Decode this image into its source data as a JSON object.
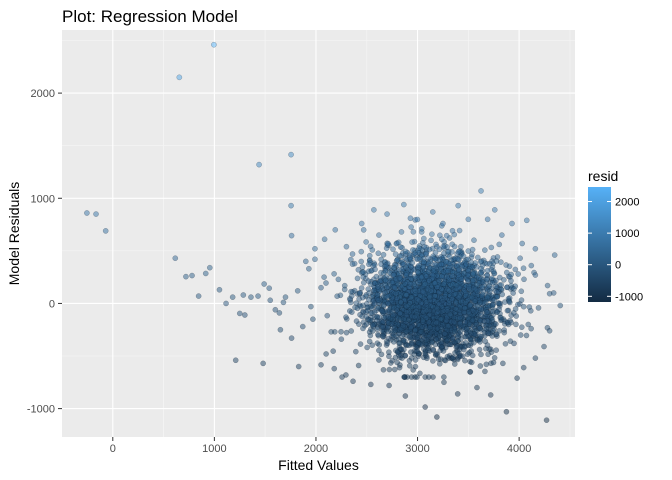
{
  "chart_data": {
    "type": "scatter",
    "title": "Plot: Regression Model",
    "xlabel": "Fitted Values",
    "ylabel": "Model Residuals",
    "xlim": [
      -500,
      4550
    ],
    "ylim": [
      -1270,
      2600
    ],
    "x_ticks": [
      0,
      1000,
      2000,
      3000,
      4000
    ],
    "x_tick_labels": [
      "0",
      "1000",
      "2000",
      "3000",
      "4000"
    ],
    "y_ticks": [
      -1000,
      0,
      1000,
      2000
    ],
    "y_tick_labels": [
      "-1000",
      "0",
      "1000",
      "2000"
    ],
    "grid": true,
    "legend": {
      "title": "resid",
      "placement": "right",
      "type": "continuous-colorbar",
      "range": [
        -1180,
        2460
      ],
      "ticks": [
        -1000,
        0,
        1000,
        2000
      ],
      "tick_labels": [
        "-1000",
        "0",
        "1000",
        "2000"
      ],
      "low_color": "#132B43",
      "high_color": "#56B1F7"
    },
    "point_alpha": 0.5,
    "points": [
      [
        995,
        2460
      ],
      [
        655,
        2150
      ],
      [
        1440,
        1320
      ],
      [
        1755,
        1415
      ],
      [
        1755,
        930
      ],
      [
        1760,
        645
      ],
      [
        -255,
        860
      ],
      [
        -165,
        850
      ],
      [
        -70,
        690
      ],
      [
        615,
        430
      ],
      [
        955,
        340
      ],
      [
        780,
        265
      ],
      [
        720,
        255
      ],
      [
        915,
        285
      ],
      [
        1050,
        130
      ],
      [
        845,
        70
      ],
      [
        1180,
        60
      ],
      [
        1285,
        80
      ],
      [
        1115,
        0
      ],
      [
        1250,
        -95
      ],
      [
        1300,
        -110
      ],
      [
        1360,
        60
      ],
      [
        1430,
        70
      ],
      [
        1490,
        185
      ],
      [
        1540,
        145
      ],
      [
        1600,
        -60
      ],
      [
        1640,
        -90
      ],
      [
        1700,
        60
      ],
      [
        1210,
        -540
      ],
      [
        1480,
        -570
      ],
      [
        1830,
        -600
      ],
      [
        1650,
        -250
      ],
      [
        1760,
        -330
      ],
      [
        1870,
        -220
      ],
      [
        1930,
        330
      ],
      [
        1990,
        420
      ],
      [
        2085,
        610
      ],
      [
        2190,
        700
      ],
      [
        1990,
        520
      ],
      [
        1900,
        400
      ],
      [
        2300,
        540
      ],
      [
        2570,
        890
      ],
      [
        2700,
        850
      ],
      [
        2865,
        940
      ],
      [
        3400,
        930
      ],
      [
        3625,
        1070
      ],
      [
        3760,
        890
      ],
      [
        3930,
        760
      ],
      [
        4075,
        790
      ],
      [
        4030,
        570
      ],
      [
        4160,
        520
      ],
      [
        4350,
        460
      ],
      [
        4160,
        270
      ],
      [
        4280,
        170
      ],
      [
        4340,
        100
      ],
      [
        4405,
        -20
      ],
      [
        4300,
        -260
      ],
      [
        4245,
        -410
      ],
      [
        4160,
        -520
      ],
      [
        4045,
        -610
      ],
      [
        3980,
        -710
      ],
      [
        3875,
        -1030
      ],
      [
        3720,
        -870
      ],
      [
        3585,
        -800
      ],
      [
        3395,
        -860
      ],
      [
        3190,
        -1080
      ],
      [
        3075,
        -985
      ],
      [
        2880,
        -880
      ],
      [
        2720,
        -780
      ],
      [
        2540,
        -770
      ],
      [
        2365,
        -740
      ],
      [
        2295,
        -680
      ],
      [
        2180,
        -620
      ],
      [
        2100,
        -480
      ],
      [
        4270,
        -1110
      ],
      [
        3520,
        -650
      ],
      [
        2980,
        -600
      ],
      [
        3260,
        -750
      ],
      [
        2450,
        760
      ],
      [
        2930,
        810
      ],
      [
        3150,
        870
      ],
      [
        3250,
        760
      ],
      [
        3500,
        800
      ],
      [
        3690,
        800
      ],
      [
        3830,
        650
      ],
      [
        2620,
        650
      ],
      [
        2360,
        470
      ],
      [
        2080,
        250
      ],
      [
        2150,
        -270
      ],
      [
        2250,
        -340
      ],
      [
        2420,
        -590
      ],
      [
        3840,
        -570
      ],
      [
        3950,
        -380
      ],
      [
        4090,
        -200
      ],
      [
        4120,
        360
      ],
      [
        4010,
        430
      ],
      [
        1550,
        30
      ],
      [
        1680,
        10
      ],
      [
        1820,
        120
      ],
      [
        1950,
        -30
      ],
      [
        2050,
        150
      ],
      [
        1970,
        -150
      ]
    ],
    "dense_cluster": {
      "center_x": 3150,
      "center_y": 0,
      "sd_x": 330,
      "sd_y": 240,
      "count": 3200
    }
  }
}
